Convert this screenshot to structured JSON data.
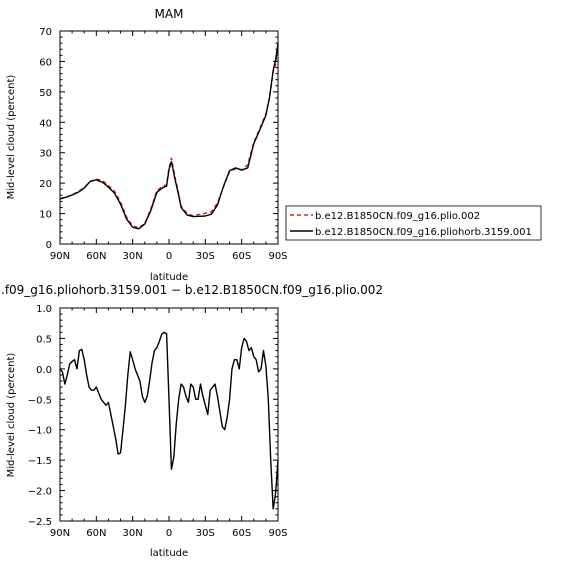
{
  "chart_data": [
    {
      "type": "line",
      "title": "MAM",
      "xlabel": "latitude",
      "ylabel": "Mid-level cloud (percent)",
      "xlim": [
        -90,
        90
      ],
      "ylim": [
        0,
        70
      ],
      "x_ticks": [
        -90,
        -60,
        -30,
        0,
        30,
        60,
        90
      ],
      "x_tick_labels": [
        "90N",
        "60N",
        "30N",
        "0",
        "30S",
        "60S",
        "90S"
      ],
      "y_ticks": [
        0,
        10,
        20,
        30,
        40,
        50,
        60,
        70
      ],
      "y_tick_labels": [
        "0",
        "10",
        "20",
        "30",
        "40",
        "50",
        "60",
        "70"
      ],
      "grid": false,
      "legend": {
        "placement": "right",
        "entries": [
          {
            "label": "b.e12.B1850CN.f09_g16.plio.002",
            "color": "#d62020",
            "dash": "dashed"
          },
          {
            "label": "b.e12.B1850CN.f09_g16.pliohorb.3159.001",
            "color": "#000000",
            "dash": "solid"
          }
        ]
      },
      "series": [
        {
          "name": "b.e12.B1850CN.f09_g16.plio.002",
          "color": "#d62020",
          "dash": "dashed",
          "x": [
            -90,
            -85,
            -80,
            -75,
            -70,
            -65,
            -60,
            -55,
            -50,
            -45,
            -40,
            -35,
            -30,
            -25,
            -20,
            -15,
            -10,
            -5,
            -2,
            0,
            2,
            5,
            8,
            10,
            15,
            20,
            25,
            30,
            35,
            40,
            45,
            50,
            55,
            60,
            65,
            70,
            75,
            80,
            83,
            86,
            88,
            90
          ],
          "y": [
            14.8,
            15.3,
            16.2,
            17.2,
            18.5,
            20.5,
            21.3,
            20.9,
            19.2,
            17.4,
            13.8,
            8.8,
            6.0,
            5.3,
            6.8,
            11.5,
            17.6,
            19.0,
            19.5,
            25.0,
            28.2,
            22.0,
            16.5,
            12.5,
            10.0,
            9.3,
            9.7,
            10.1,
            10.6,
            13.5,
            18.8,
            23.8,
            24.7,
            24.4,
            26.0,
            33.5,
            38.0,
            42.8,
            48.0,
            56.5,
            58.8,
            66.2
          ]
        },
        {
          "name": "b.e12.B1850CN.f09_g16.pliohorb.3159.001",
          "color": "#000000",
          "dash": "solid",
          "x": [
            -90,
            -85,
            -80,
            -75,
            -70,
            -65,
            -60,
            -55,
            -50,
            -45,
            -40,
            -35,
            -30,
            -25,
            -20,
            -15,
            -10,
            -5,
            -2,
            0,
            2,
            5,
            8,
            10,
            15,
            20,
            25,
            30,
            35,
            40,
            45,
            50,
            55,
            60,
            65,
            70,
            75,
            80,
            83,
            86,
            88,
            90
          ],
          "y": [
            14.9,
            15.4,
            16.1,
            17.0,
            18.4,
            20.6,
            21.1,
            20.3,
            18.7,
            16.7,
            13.1,
            8.2,
            5.5,
            5.0,
            6.6,
            11.0,
            17.0,
            18.6,
            19.0,
            24.5,
            27.1,
            21.2,
            16.0,
            12.0,
            9.5,
            9.0,
            9.1,
            9.2,
            9.8,
            12.8,
            19.0,
            24.1,
            25.0,
            24.3,
            25.0,
            33.0,
            37.5,
            42.3,
            48.2,
            57.0,
            60.5,
            65.8
          ]
        }
      ]
    },
    {
      "type": "line",
      "title": ".f09_g16.pliohorb.3159.001 − b.e12.B1850CN.f09_g16.plio.002",
      "xlabel": "latitude",
      "ylabel": "Mid-level cloud (percent)",
      "xlim": [
        -90,
        90
      ],
      "ylim": [
        -2.5,
        1.0
      ],
      "x_ticks": [
        -90,
        -60,
        -30,
        0,
        30,
        60,
        90
      ],
      "x_tick_labels": [
        "90N",
        "60N",
        "30N",
        "0",
        "30S",
        "60S",
        "90S"
      ],
      "y_ticks": [
        -2.5,
        -2.0,
        -1.5,
        -1.0,
        -0.5,
        0.0,
        0.5,
        1.0
      ],
      "y_tick_labels": [
        "−2.5",
        "−2.0",
        "−1.5",
        "−1.0",
        "−0.5",
        "0.0",
        "0.5",
        "1.0"
      ],
      "grid": false,
      "series": [
        {
          "color": "#000000",
          "dash": "solid",
          "x": [
            -90,
            -88,
            -86,
            -84,
            -82,
            -80,
            -78,
            -76,
            -74,
            -72,
            -70,
            -68,
            -66,
            -64,
            -62,
            -60,
            -58,
            -56,
            -54,
            -52,
            -50,
            -48,
            -46,
            -44,
            -42,
            -40,
            -38,
            -36,
            -34,
            -32,
            -30,
            -28,
            -26,
            -24,
            -22,
            -20,
            -18,
            -16,
            -14,
            -12,
            -10,
            -8,
            -6,
            -4,
            -2,
            0,
            2,
            4,
            6,
            8,
            10,
            12,
            14,
            16,
            18,
            20,
            22,
            24,
            26,
            28,
            30,
            32,
            34,
            36,
            38,
            40,
            42,
            44,
            46,
            48,
            50,
            52,
            54,
            56,
            58,
            60,
            62,
            64,
            66,
            68,
            70,
            72,
            74,
            76,
            78,
            80,
            82,
            84,
            86,
            88,
            90
          ],
          "y": [
            0.0,
            -0.05,
            -0.25,
            -0.1,
            0.08,
            0.12,
            0.15,
            0.0,
            0.3,
            0.32,
            0.15,
            -0.1,
            -0.3,
            -0.35,
            -0.35,
            -0.3,
            -0.4,
            -0.5,
            -0.55,
            -0.6,
            -0.55,
            -0.75,
            -0.95,
            -1.15,
            -1.4,
            -1.38,
            -1.0,
            -0.6,
            -0.1,
            0.28,
            0.15,
            0.0,
            -0.1,
            -0.2,
            -0.45,
            -0.55,
            -0.45,
            -0.2,
            0.1,
            0.3,
            0.35,
            0.45,
            0.57,
            0.6,
            0.58,
            -0.5,
            -1.65,
            -1.45,
            -0.9,
            -0.5,
            -0.25,
            -0.3,
            -0.45,
            -0.55,
            -0.25,
            -0.3,
            -0.5,
            -0.5,
            -0.25,
            -0.45,
            -0.6,
            -0.75,
            -0.35,
            -0.3,
            -0.25,
            -0.45,
            -0.7,
            -0.95,
            -1.0,
            -0.8,
            -0.5,
            0.0,
            0.15,
            0.15,
            0.0,
            0.35,
            0.5,
            0.45,
            0.3,
            0.35,
            0.2,
            0.15,
            -0.05,
            0.0,
            0.3,
            0.05,
            -0.5,
            -1.5,
            -2.3,
            -2.05,
            -1.5
          ]
        }
      ]
    }
  ]
}
